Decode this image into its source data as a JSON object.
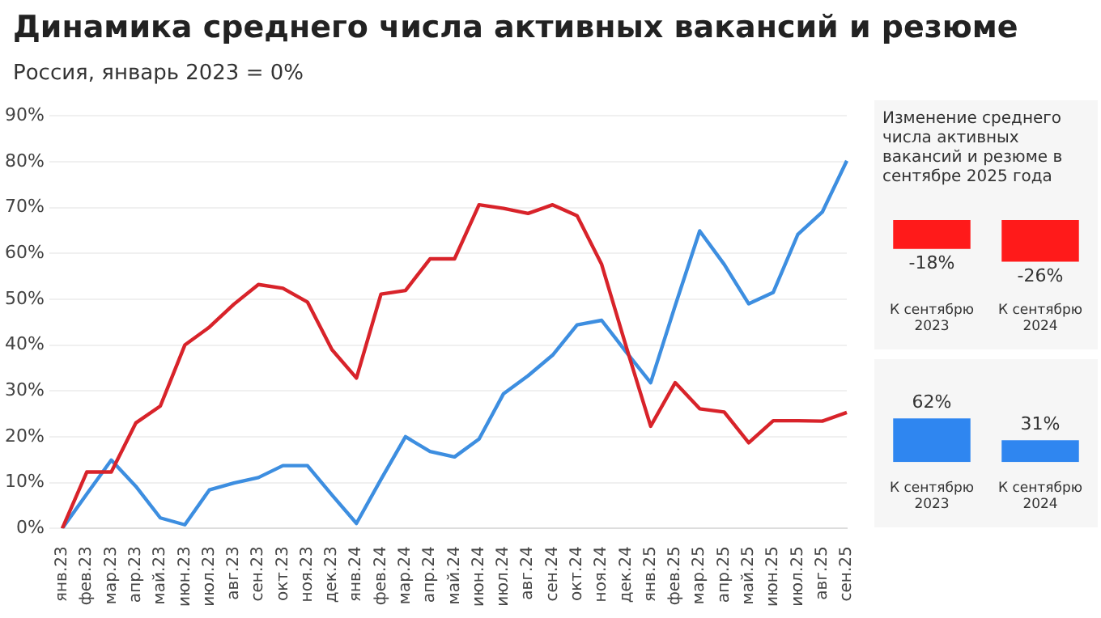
{
  "chart_data": [
    {
      "type": "line",
      "title": "Динамика среднего числа активных вакансий и резюме",
      "subtitle": "Россия, январь 2023 = 0%",
      "categories": [
        "янв.23",
        "фев.23",
        "мар.23",
        "апр.23",
        "май.23",
        "июн.23",
        "июл.23",
        "авг.23",
        "сен.23",
        "окт.23",
        "ноя.23",
        "дек.23",
        "янв.24",
        "фев.24",
        "мар.24",
        "апр.24",
        "май.24",
        "июн.24",
        "июл.24",
        "авг.24",
        "сен.24",
        "окт.24",
        "ноя.24",
        "дек.24",
        "янв.25",
        "фев.25",
        "мар.25",
        "апр.25",
        "май.25",
        "июн.25",
        "июл.25",
        "авг.25",
        "сен.25"
      ],
      "series": [
        {
          "color": "#d8232a",
          "values": [
            0,
            12.3,
            12.3,
            23,
            26.7,
            40,
            43.9,
            48.9,
            53.2,
            52.4,
            49.4,
            39,
            32.8,
            51.1,
            51.9,
            58.8,
            58.8,
            70.6,
            69.8,
            68.7,
            70.6,
            68.2,
            57.6,
            39.7,
            22.3,
            31.8,
            26.1,
            25.4,
            18.7,
            23.5,
            23.5,
            23.4,
            25.3
          ]
        },
        {
          "color": "#3d8ee0",
          "values": [
            0,
            7.5,
            14.9,
            9.2,
            2.3,
            0.8,
            8.4,
            9.9,
            11.1,
            13.7,
            13.7,
            7.3,
            1.1,
            10.7,
            20,
            16.8,
            15.6,
            19.5,
            29.4,
            33.3,
            37.8,
            44.4,
            45.4,
            38.5,
            31.8,
            48.6,
            64.9,
            57.6,
            49,
            51.5,
            64.1,
            69,
            80.2
          ]
        }
      ],
      "ylim": [
        0,
        90
      ],
      "yticks": [
        {
          "value": 0,
          "label": "0%"
        },
        {
          "value": 10,
          "label": "10%"
        },
        {
          "value": 20,
          "label": "20%"
        },
        {
          "value": 30,
          "label": "30%"
        },
        {
          "value": 40,
          "label": "40%"
        },
        {
          "value": 50,
          "label": "50%"
        },
        {
          "value": 60,
          "label": "60%"
        },
        {
          "value": 70,
          "label": "70%"
        },
        {
          "value": 80,
          "label": "80%"
        },
        {
          "value": 90,
          "label": "90%"
        }
      ],
      "grid": "y",
      "legend": false,
      "marker": "none",
      "line_style": "solid"
    },
    {
      "type": "bar",
      "title": "Изменение среднего числа активных вакансий и резюме в сентябре 2025 года",
      "categories": [
        "К сентябрю 2023",
        "К сентябрю 2024"
      ],
      "values": [
        -18,
        -26
      ],
      "color": "#ff1a1a",
      "value_labels": [
        "-18%",
        "-26%"
      ],
      "tick_labels": "x",
      "grid": false,
      "legend": false
    },
    {
      "type": "bar",
      "categories": [
        "К сентябрю 2023",
        "К сентябрю 2024"
      ],
      "values": [
        62,
        31
      ],
      "color": "#2f86f0",
      "value_labels": [
        "62%",
        "31%"
      ],
      "tick_labels": "x",
      "grid": false,
      "legend": false
    }
  ]
}
